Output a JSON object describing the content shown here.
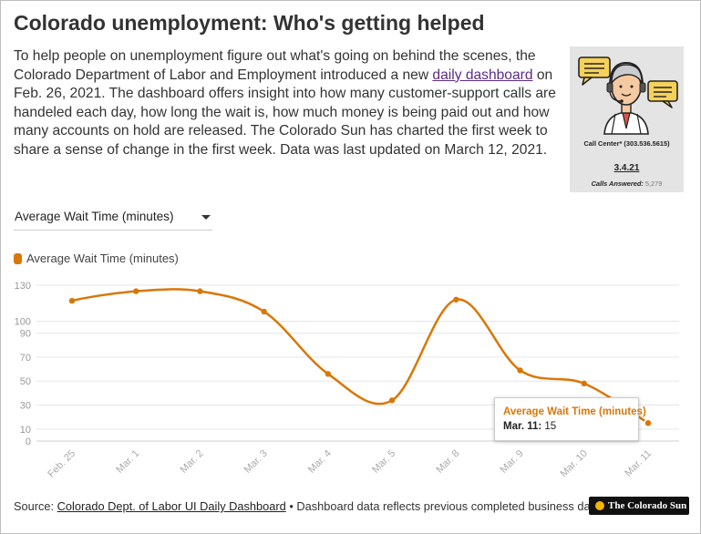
{
  "header": {
    "title": "Colorado unemployment: Who's getting helped",
    "intro_before_link": "To help people on unemployment figure out what's going on behind the scenes, the Colorado Department of Labor and Employment introduced a new ",
    "intro_link": "daily dashboard",
    "intro_after_link": " on Feb. 26, 2021. The dashboard offers insight into how many customer-support calls are handeled each day, how long the wait is, how much money is being paid out and how many accounts on hold are released. The Colorado Sun has charted the first week to share a sense of change in the first week. Data was last updated on March 12, 2021."
  },
  "thumbnail": {
    "icon": "call-center-agent-icon",
    "call_center": "Call Center* (303.536.5615)",
    "date": "3.4.21",
    "calls_answered_label": "Calls Answered:",
    "calls_answered_value": "5,279"
  },
  "selector": {
    "selected": "Average Wait Time (minutes)"
  },
  "legend": {
    "label": "Average Wait Time (minutes)"
  },
  "tooltip": {
    "series": "Average Wait Time (minutes)",
    "date_label": "Mar. 11:",
    "value": "15"
  },
  "footer": {
    "source_label": "Source: ",
    "source_link": "Colorado Dept. of Labor UI Daily Dashboard",
    "note": " • Dashboard data reflects previous completed business day.",
    "logo_text": "The Colorado Sun"
  },
  "colors": {
    "series": "#d97706",
    "grid": "#e6e6e6",
    "axis_text": "#999999"
  },
  "chart_data": {
    "type": "line",
    "categories": [
      "Feb. 25",
      "Mar. 1",
      "Mar. 2",
      "Mar. 3",
      "Mar. 4",
      "Mar. 5",
      "Mar. 8",
      "Mar. 9",
      "Mar. 10",
      "Mar. 11"
    ],
    "series": [
      {
        "name": "Average Wait Time (minutes)",
        "values": [
          117,
          125,
          125,
          108,
          56,
          34,
          118,
          59,
          48,
          15
        ]
      }
    ],
    "ylim": [
      0,
      130
    ],
    "yticks": [
      0,
      10,
      30,
      50,
      70,
      90,
      100,
      130
    ],
    "grid": true,
    "legend": "top-left",
    "highlight_index": 9
  }
}
